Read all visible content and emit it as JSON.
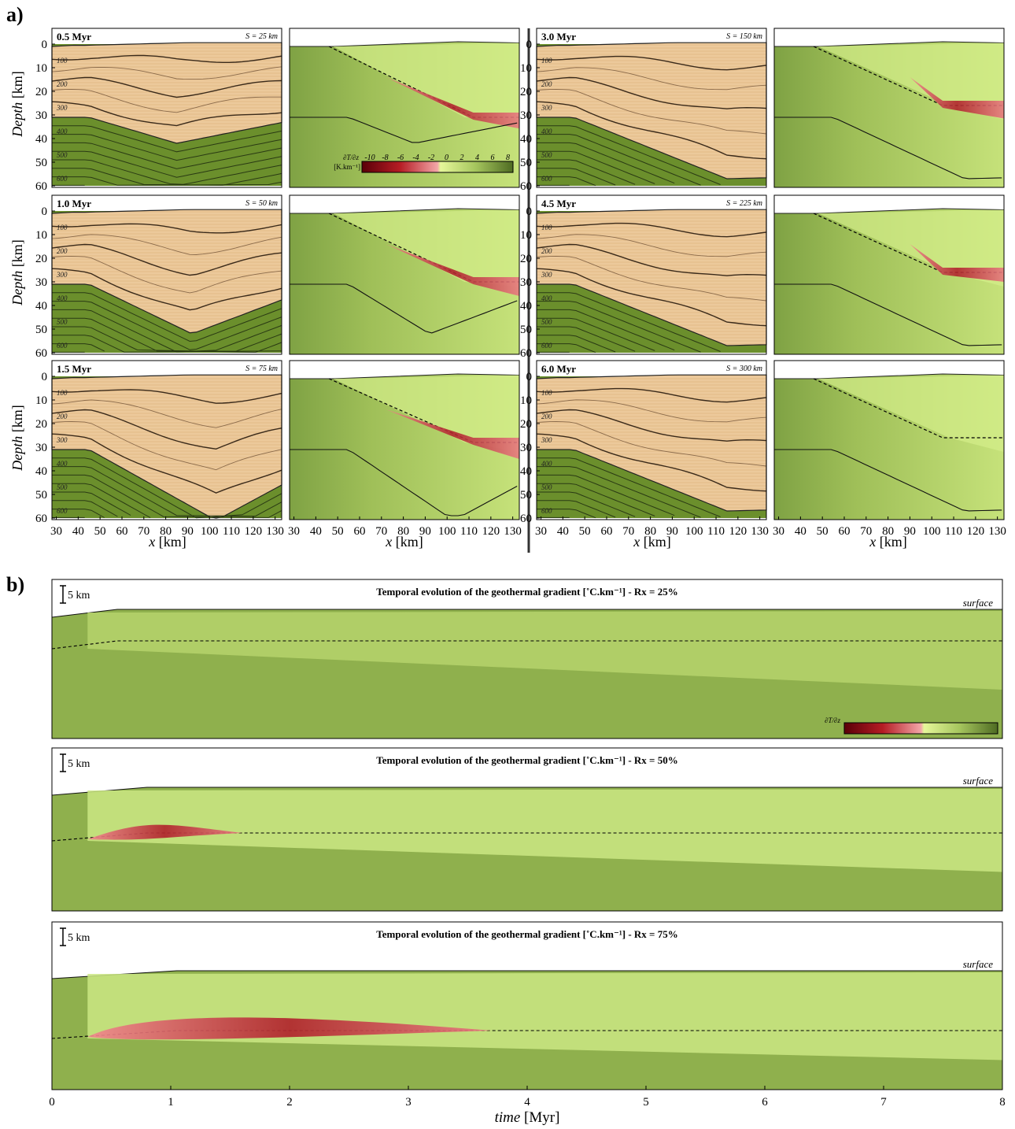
{
  "part_a": {
    "label": "a)",
    "y_axis_label": "Depth",
    "y_axis_unit": "[km]",
    "x_axis_label": "x",
    "x_axis_unit": "[km]",
    "y_ticks": [
      "0",
      "10",
      "20",
      "30",
      "40",
      "50",
      "60"
    ],
    "x_ticks": [
      "30",
      "40",
      "50",
      "60",
      "70",
      "80",
      "90",
      "100",
      "110",
      "120",
      "130"
    ],
    "contour_labels": [
      "100",
      "200",
      "300",
      "400",
      "500",
      "600"
    ],
    "colorbar": {
      "title": "∂T/∂z",
      "unit": "[K.km⁻¹]",
      "ticks": [
        "-10",
        "-8",
        "-6",
        "-4",
        "-2",
        "0",
        "2",
        "4",
        "6",
        "8"
      ]
    },
    "panels": [
      {
        "time": "0.5 Myr",
        "shift": "S = 25 km",
        "anomaly": 0.55,
        "fold_depth": 42,
        "fold_x": 85,
        "detach": 31
      },
      {
        "time": "1.0 Myr",
        "shift": "S = 50 km",
        "anomaly": 0.8,
        "fold_depth": 52,
        "fold_x": 92,
        "detach": 30
      },
      {
        "time": "1.5 Myr",
        "shift": "S = 75 km",
        "anomaly": 1.0,
        "fold_depth": 61,
        "fold_x": 103,
        "detach": 28
      },
      {
        "time": "3.0 Myr",
        "shift": "S = 150 km",
        "anomaly": 0.7,
        "fold_depth": 57,
        "fold_x": 115,
        "detach": 26
      },
      {
        "time": "4.5 Myr",
        "shift": "S = 225 km",
        "anomaly": 0.4,
        "fold_depth": 57,
        "fold_x": 115,
        "detach": 26
      },
      {
        "time": "6.0 Myr",
        "shift": "S = 300 km",
        "anomaly": 0.0,
        "fold_depth": 57,
        "fold_x": 115,
        "detach": 26
      }
    ],
    "colors": {
      "sediment": "#ecc99b",
      "basement": "#6b8f2c",
      "green_dark": "#7a9e3e",
      "green_mid": "#a6c65e",
      "green_light": "#d8ef92",
      "red": "#d85c68",
      "red_dark": "#8c1018"
    }
  },
  "part_b": {
    "label": "b)",
    "x_axis_label": "time",
    "x_axis_unit": "[Myr]",
    "x_ticks": [
      "0",
      "1",
      "2",
      "3",
      "4",
      "5",
      "6",
      "7",
      "8"
    ],
    "scale_bar": "5 km",
    "surface_label": "surface",
    "colorbar_title": "∂T/∂z",
    "panels": [
      {
        "title": "Temporal evolution of the geothermal gradient [˚C.km⁻¹] - Rx = 25%",
        "anomaly_extent_myr": 0.0,
        "anomaly_strength": 0.0
      },
      {
        "title": "Temporal evolution of the geothermal gradient [˚C.km⁻¹] - Rx = 50%",
        "anomaly_extent_myr": 1.6,
        "anomaly_strength": 0.55
      },
      {
        "title": "Temporal evolution of the geothermal gradient [˚C.km⁻¹] - Rx = 75%",
        "anomaly_extent_myr": 3.7,
        "anomaly_strength": 1.0
      }
    ]
  }
}
